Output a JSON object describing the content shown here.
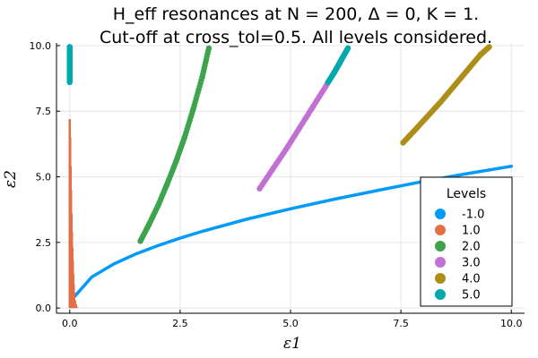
{
  "chart_data": {
    "type": "scatter",
    "title_line1": "H_eff resonances at N = 200, Δ = 0, K = 1.",
    "title_line2": "Cut-off at cross_tol=0.5. All levels considered.",
    "xlabel": "ε1",
    "ylabel": "ε2",
    "xlim": [
      -0.3,
      10.3
    ],
    "ylim": [
      -0.2,
      10.1
    ],
    "xticks": [
      0.0,
      2.5,
      5.0,
      7.5,
      10.0
    ],
    "xtick_labels": [
      "0.0",
      "2.5",
      "5.0",
      "7.5",
      "10.0"
    ],
    "yticks": [
      0.0,
      2.5,
      5.0,
      7.5,
      10.0
    ],
    "ytick_labels": [
      "0.0",
      "2.5",
      "5.0",
      "7.5",
      "10.0"
    ],
    "grid": true,
    "legend_title": "Levels",
    "legend_position": "bottom-right",
    "series": [
      {
        "name": "-1.0",
        "color": "#009AF9",
        "style": "line",
        "x": [
          0.1,
          0.5,
          1.0,
          1.5,
          2.0,
          2.5,
          3.0,
          4.0,
          5.0,
          6.0,
          7.0,
          8.0,
          9.0,
          10.0
        ],
        "y": [
          0.42,
          1.18,
          1.68,
          2.06,
          2.38,
          2.66,
          2.92,
          3.38,
          3.78,
          4.15,
          4.49,
          4.82,
          5.12,
          5.4
        ]
      },
      {
        "name": "1.0",
        "color": "#E26F46",
        "style": "spikes",
        "x": [
          0.0,
          0.01,
          0.02,
          0.03,
          0.04,
          0.05,
          0.06,
          0.07,
          0.08,
          0.09,
          0.1,
          0.12,
          0.14,
          0.16
        ],
        "y": [
          7.2,
          6.5,
          5.4,
          4.5,
          3.6,
          2.9,
          2.3,
          1.8,
          1.3,
          0.9,
          0.6,
          0.3,
          0.15,
          0.05
        ]
      },
      {
        "name": "2.0",
        "color": "#3DA44D",
        "style": "dots",
        "x": [
          1.6,
          1.8,
          2.0,
          2.2,
          2.4,
          2.6,
          2.8,
          3.0,
          3.15
        ],
        "y": [
          2.55,
          3.2,
          3.9,
          4.7,
          5.55,
          6.5,
          7.6,
          8.8,
          9.9
        ]
      },
      {
        "name": "3.0",
        "color": "#C271D2",
        "style": "dots",
        "x": [
          4.3,
          4.6,
          4.9,
          5.2,
          5.5,
          5.8,
          6.1,
          6.3
        ],
        "y": [
          4.55,
          5.3,
          6.05,
          6.85,
          7.65,
          8.45,
          9.3,
          9.9
        ]
      },
      {
        "name": "4.0",
        "color": "#AC8E18",
        "style": "dots",
        "x": [
          7.55,
          7.8,
          8.1,
          8.4,
          8.7,
          9.0,
          9.3,
          9.5
        ],
        "y": [
          6.3,
          6.75,
          7.3,
          7.85,
          8.45,
          9.05,
          9.65,
          9.95
        ]
      },
      {
        "name": "5.0",
        "color": "#00A9AD",
        "style": "dots",
        "x": [
          0.0,
          0.0,
          0.0,
          0.0,
          0.0,
          0.0,
          0.0,
          0.0,
          5.85,
          6.0,
          6.1,
          6.2,
          6.3
        ],
        "y": [
          9.95,
          9.8,
          9.6,
          9.4,
          9.2,
          9.0,
          8.8,
          8.6,
          8.6,
          9.0,
          9.3,
          9.6,
          9.9
        ]
      }
    ]
  }
}
